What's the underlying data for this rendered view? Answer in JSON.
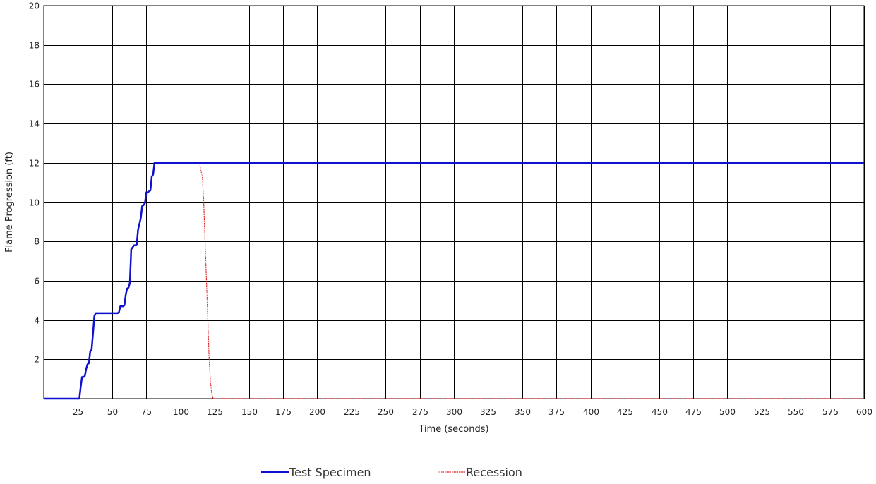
{
  "chart_data": {
    "type": "line",
    "xlabel": "Time (seconds)",
    "ylabel": "Flame Progression (ft)",
    "xlim": [
      0,
      600
    ],
    "ylim": [
      0,
      20
    ],
    "x_ticks": [
      25,
      50,
      75,
      100,
      125,
      150,
      175,
      200,
      225,
      250,
      275,
      300,
      325,
      350,
      375,
      400,
      425,
      450,
      475,
      500,
      525,
      550,
      575,
      600
    ],
    "y_ticks": [
      2,
      4,
      6,
      8,
      10,
      12,
      14,
      16,
      18,
      20
    ],
    "grid": true,
    "legend_position": "bottom-center",
    "series": [
      {
        "name": "Test Specimen",
        "color": "#1010d0",
        "style": "solid",
        "x": [
          0,
          26,
          27,
          28,
          29,
          30,
          31,
          32,
          33,
          34,
          35,
          36,
          37,
          38,
          39,
          40,
          41,
          54,
          55,
          56,
          58,
          59,
          60,
          61,
          62,
          63,
          64,
          65,
          66,
          67,
          68,
          69,
          70,
          71,
          72,
          73,
          74,
          75,
          76,
          77,
          78,
          79,
          80,
          81,
          82,
          83,
          84,
          85,
          86,
          87,
          600
        ],
        "y": [
          0,
          0,
          0.6,
          1.1,
          1.1,
          1.15,
          1.5,
          1.75,
          1.8,
          2.4,
          2.5,
          3.3,
          4.2,
          4.35,
          4.35,
          4.35,
          4.35,
          4.35,
          4.4,
          4.7,
          4.7,
          4.75,
          5.3,
          5.6,
          5.65,
          5.9,
          7.6,
          7.7,
          7.8,
          7.8,
          7.85,
          8.6,
          8.9,
          9.2,
          9.8,
          9.85,
          9.95,
          10.5,
          10.5,
          10.55,
          10.6,
          11.3,
          11.4,
          12,
          12,
          12,
          12,
          12,
          12,
          12,
          12
        ]
      },
      {
        "name": "Recession",
        "color": "#e02020",
        "style": "dotted",
        "x": [
          0,
          26,
          27,
          28,
          29,
          30,
          31,
          32,
          33,
          34,
          35,
          36,
          37,
          38,
          39,
          40,
          41,
          54,
          55,
          56,
          58,
          59,
          60,
          61,
          62,
          63,
          64,
          65,
          66,
          67,
          68,
          69,
          70,
          71,
          72,
          73,
          74,
          75,
          76,
          77,
          78,
          79,
          80,
          81,
          114,
          115,
          116,
          117,
          118,
          119,
          120,
          121,
          122,
          123,
          124,
          600
        ],
        "y": [
          0,
          0,
          0.6,
          1.1,
          1.1,
          1.15,
          1.5,
          1.75,
          1.8,
          2.4,
          2.5,
          3.3,
          4.2,
          4.35,
          4.35,
          4.35,
          4.35,
          4.35,
          4.4,
          4.7,
          4.7,
          4.75,
          5.3,
          5.6,
          5.65,
          5.9,
          7.6,
          7.7,
          7.8,
          7.8,
          7.85,
          8.6,
          8.9,
          9.2,
          9.8,
          9.85,
          9.95,
          10.5,
          10.5,
          10.55,
          10.6,
          11.3,
          11.4,
          12,
          12,
          11.6,
          11.3,
          10.0,
          8.0,
          6.0,
          4.0,
          2.0,
          0.8,
          0.2,
          0,
          0
        ]
      }
    ]
  }
}
